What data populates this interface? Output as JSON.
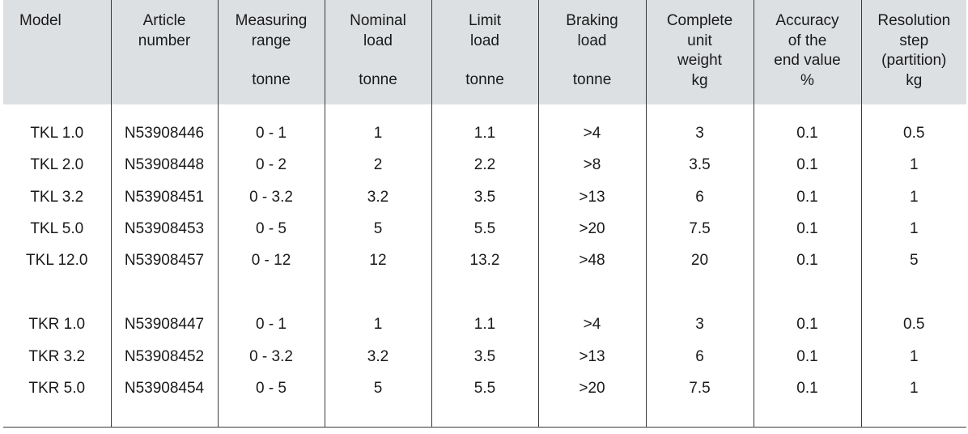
{
  "columns": [
    {
      "key": "model",
      "lines": [
        "Model"
      ],
      "unit": ""
    },
    {
      "key": "article",
      "lines": [
        "Article",
        "number"
      ],
      "unit": ""
    },
    {
      "key": "range",
      "lines": [
        "Measuring",
        "range"
      ],
      "unit": "tonne"
    },
    {
      "key": "nominal",
      "lines": [
        "Nominal",
        "load"
      ],
      "unit": "tonne"
    },
    {
      "key": "limit",
      "lines": [
        "Limit",
        "load"
      ],
      "unit": "tonne"
    },
    {
      "key": "braking",
      "lines": [
        "Braking",
        "load"
      ],
      "unit": "tonne"
    },
    {
      "key": "weight",
      "lines": [
        "Complete",
        "unit",
        "weight"
      ],
      "unit": "kg"
    },
    {
      "key": "accuracy",
      "lines": [
        "Accuracy",
        "of the",
        "end value"
      ],
      "unit": "%"
    },
    {
      "key": "resolution",
      "lines": [
        "Resolution",
        "step",
        "(partition)"
      ],
      "unit": "kg"
    }
  ],
  "groups": [
    {
      "rows": [
        [
          "TKL 1.0",
          "N53908446",
          "0 - 1",
          "1",
          "1.1",
          ">4",
          "3",
          "0.1",
          "0.5"
        ],
        [
          "TKL 2.0",
          "N53908448",
          "0 - 2",
          "2",
          "2.2",
          ">8",
          "3.5",
          "0.1",
          "1"
        ],
        [
          "TKL 3.2",
          "N53908451",
          "0 - 3.2",
          "3.2",
          "3.5",
          ">13",
          "6",
          "0.1",
          "1"
        ],
        [
          "TKL 5.0",
          "N53908453",
          "0 - 5",
          "5",
          "5.5",
          ">20",
          "7.5",
          "0.1",
          "1"
        ],
        [
          "TKL 12.0",
          "N53908457",
          "0 - 12",
          "12",
          "13.2",
          ">48",
          "20",
          "0.1",
          "5"
        ]
      ]
    },
    {
      "rows": [
        [
          "TKR 1.0",
          "N53908447",
          "0 - 1",
          "1",
          "1.1",
          ">4",
          "3",
          "0.1",
          "0.5"
        ],
        [
          "TKR 3.2",
          "N53908452",
          "0 - 3.2",
          "3.2",
          "3.5",
          ">13",
          "6",
          "0.1",
          "1"
        ],
        [
          "TKR 5.0",
          "N53908454",
          "0 - 5",
          "5",
          "5.5",
          ">20",
          "7.5",
          "0.1",
          "1"
        ]
      ]
    }
  ]
}
